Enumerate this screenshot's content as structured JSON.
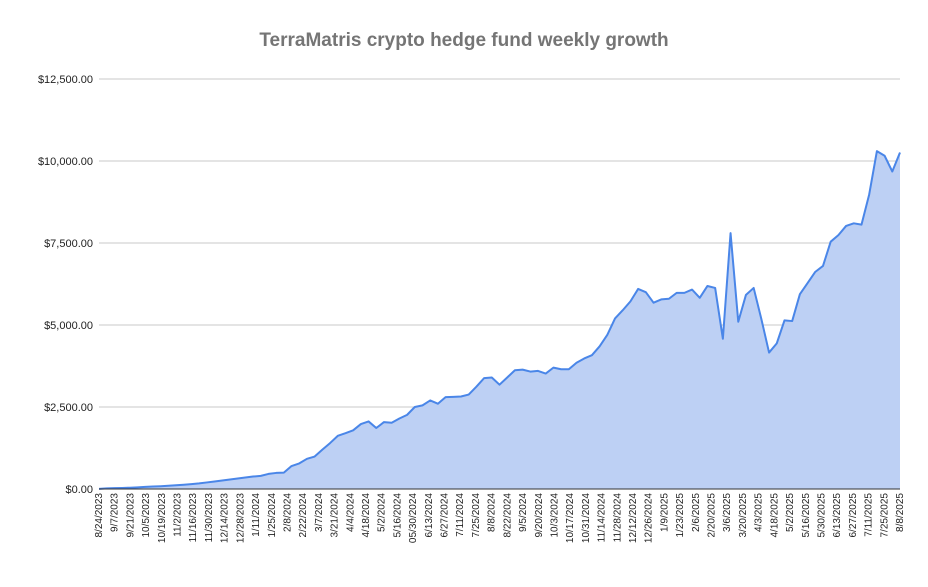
{
  "chart_data": {
    "type": "area",
    "title": "TerraMatris crypto hedge fund weekly growth",
    "xlabel": "",
    "ylabel": "",
    "ylim": [
      0,
      12500
    ],
    "yticks": [
      "$0.00",
      "$2,500.00",
      "$5,000.00",
      "$7,500.00",
      "$10,000.00",
      "$12,500.00"
    ],
    "ytick_values": [
      0,
      2500,
      5000,
      7500,
      10000,
      12500
    ],
    "grid": true,
    "legend": "none",
    "colors": {
      "line": "#4a86e8",
      "fill": "#bdd0f4",
      "grid": "#c8c8c8",
      "axis": "#333333"
    },
    "x_labels": [
      "8/24/2023",
      "9/7/2023",
      "9/21/2023",
      "10/5/2023",
      "10/19/2023",
      "11/2/2023",
      "11/16/2023",
      "11/30/2023",
      "12/14/2023",
      "12/28/2023",
      "1/11/2024",
      "1/25/2024",
      "2/8/2024",
      "2/22/2024",
      "3/7/2024",
      "3/21/2024",
      "4/4/2024",
      "4/18/2024",
      "5/2/2024",
      "5/16/2024",
      "05/30/2024",
      "6/13/2024",
      "6/27/2024",
      "7/11/2024",
      "7/25/2024",
      "8/8/2024",
      "8/22/2024",
      "9/5/2024",
      "9/20/2024",
      "10/3/2024",
      "10/17/2024",
      "10/31/2024",
      "11/14/2024",
      "11/28/2024",
      "12/12/2024",
      "12/26/2024",
      "1/9/2025",
      "1/23/2025",
      "2/6/2025",
      "2/20/2025",
      "3/6/2025",
      "3/20/2025",
      "4/3/2025",
      "4/18/2025",
      "5/2/2025",
      "5/16/2025",
      "5/30/2025",
      "6/13/2025",
      "6/27/2025",
      "7/11/2025",
      "7/25/2025",
      "8/8/2025"
    ],
    "values": [
      5,
      18,
      25,
      30,
      40,
      50,
      65,
      75,
      85,
      100,
      115,
      130,
      150,
      170,
      200,
      230,
      260,
      290,
      320,
      350,
      380,
      400,
      460,
      490,
      500,
      700,
      780,
      920,
      990,
      1200,
      1400,
      1620,
      1700,
      1790,
      1980,
      2060,
      1860,
      2040,
      2020,
      2150,
      2260,
      2500,
      2550,
      2700,
      2600,
      2800,
      2810,
      2820,
      2880,
      3120,
      3380,
      3400,
      3180,
      3400,
      3620,
      3640,
      3580,
      3600,
      3520,
      3700,
      3650,
      3650,
      3850,
      3980,
      4080,
      4350,
      4700,
      5200,
      5450,
      5720,
      6100,
      6000,
      5680,
      5780,
      5800,
      5980,
      5980,
      6080,
      5830,
      6190,
      6130,
      4580,
      7800,
      5100,
      5920,
      6130,
      5180,
      4160,
      4440,
      5140,
      5120,
      5940,
      6280,
      6620,
      6800,
      7540,
      7740,
      8020,
      8100,
      8060,
      8980,
      10300,
      10160,
      9680,
      10260
    ]
  }
}
